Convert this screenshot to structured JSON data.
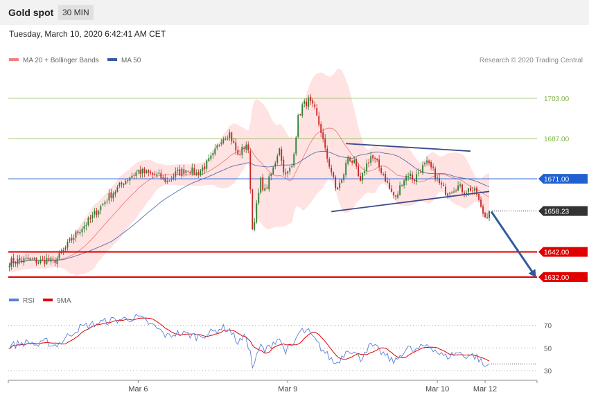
{
  "header": {
    "title": "Gold spot",
    "timeframe": "30 MIN"
  },
  "date_text": "Tuesday, March 10, 2020 6:42:41 AM CET",
  "copyright": "Research © 2020 Trading Central",
  "colors": {
    "up": "#2e7d32",
    "down": "#c62828",
    "ma20": "#f08080",
    "band": "#ffd8d8",
    "ma50": "#3a5ba0",
    "support": "#e00000",
    "resistance": "#7cb342",
    "pivot": "#2060d0",
    "trend": "#3c4a8c",
    "rsi": "#5b7fd6",
    "rsi_ma": "#e00000"
  },
  "chart_data": [
    {
      "type": "line",
      "subtype": "candlestick",
      "legend": [
        {
          "name": "MA 20 + Bollinger Bands",
          "color": "#f08080"
        },
        {
          "name": "MA 50",
          "color": "#3a5ba0"
        }
      ],
      "x_ticks": [
        {
          "label": "Mar 6",
          "i": 62
        },
        {
          "label": "Mar 9",
          "i": 134
        },
        {
          "label": "Mar 10",
          "i": 206
        },
        {
          "label": "Mar 12",
          "i": 229
        }
      ],
      "x_range": [
        -0.5,
        254
      ],
      "y_range": [
        1626.5,
        1714.5
      ],
      "y_tick_label_style": "price tags",
      "levels": [
        {
          "label": "1703.00",
          "value": 1703.0,
          "role": "resistance"
        },
        {
          "label": "1687.00",
          "value": 1687.0,
          "role": "resistance"
        },
        {
          "label": "1671.00",
          "value": 1671.0,
          "role": "pivot"
        },
        {
          "label": "1642.00",
          "value": 1642.0,
          "role": "support"
        },
        {
          "label": "1632.00",
          "value": 1632.0,
          "role": "support"
        }
      ],
      "last_price": {
        "label": "1658.23",
        "value": 1658.23
      },
      "trendlines": [
        {
          "from": [
            162,
            1685.0
          ],
          "to": [
            222,
            1682.0
          ]
        },
        {
          "from": [
            155,
            1658.0
          ],
          "to": [
            231,
            1666.0
          ]
        }
      ],
      "forecast_arrow": {
        "from": [
          232,
          1658.0
        ],
        "to": [
          253,
          1632.5
        ]
      },
      "anchors": [
        [
          0,
          1638
        ],
        [
          5,
          1638.5
        ],
        [
          10,
          1639
        ],
        [
          14,
          1638
        ],
        [
          18,
          1639
        ],
        [
          21,
          1638
        ],
        [
          25,
          1641
        ],
        [
          29,
          1646
        ],
        [
          34,
          1651
        ],
        [
          38,
          1654
        ],
        [
          43,
          1659
        ],
        [
          48,
          1664
        ],
        [
          53,
          1668
        ],
        [
          58,
          1672
        ],
        [
          62,
          1674
        ],
        [
          67,
          1673
        ],
        [
          72,
          1672
        ],
        [
          76,
          1670
        ],
        [
          80,
          1673
        ],
        [
          86,
          1675
        ],
        [
          90,
          1673
        ],
        [
          94,
          1676
        ],
        [
          98,
          1680
        ],
        [
          102,
          1687
        ],
        [
          106,
          1689
        ],
        [
          110,
          1680
        ],
        [
          114,
          1685
        ],
        [
          115,
          1681
        ],
        [
          116,
          1668
        ],
        [
          117,
          1651
        ],
        [
          119,
          1660
        ],
        [
          121,
          1670
        ],
        [
          123,
          1666
        ],
        [
          127,
          1675
        ],
        [
          130,
          1684
        ],
        [
          131,
          1678
        ],
        [
          133,
          1672
        ],
        [
          136,
          1676
        ],
        [
          139,
          1695
        ],
        [
          141,
          1700
        ],
        [
          144,
          1702
        ],
        [
          147,
          1698
        ],
        [
          150,
          1690
        ],
        [
          152,
          1682
        ],
        [
          155,
          1674
        ],
        [
          157,
          1667
        ],
        [
          160,
          1670
        ],
        [
          163,
          1680
        ],
        [
          166,
          1677
        ],
        [
          169,
          1669
        ],
        [
          171,
          1675
        ],
        [
          174,
          1680
        ],
        [
          177,
          1677
        ],
        [
          180,
          1673
        ],
        [
          183,
          1667
        ],
        [
          186,
          1663
        ],
        [
          189,
          1670
        ],
        [
          192,
          1673
        ],
        [
          195,
          1671
        ],
        [
          198,
          1675
        ],
        [
          201,
          1677
        ],
        [
          204,
          1674
        ],
        [
          207,
          1669
        ],
        [
          210,
          1666
        ],
        [
          213,
          1667
        ],
        [
          216,
          1668
        ],
        [
          219,
          1666
        ],
        [
          222,
          1667
        ],
        [
          225,
          1665
        ],
        [
          227,
          1659
        ],
        [
          229,
          1656
        ],
        [
          231,
          1658.23
        ]
      ]
    },
    {
      "type": "line",
      "legend": [
        {
          "name": "RSI",
          "color": "#5b7fd6"
        },
        {
          "name": "9MA",
          "color": "#e00000"
        }
      ],
      "y_range": [
        24,
        85
      ],
      "ref_lines": [
        {
          "label": "70",
          "value": 70
        },
        {
          "label": "50",
          "value": 50
        },
        {
          "label": "30",
          "value": 30
        }
      ],
      "rsi_anchors": [
        [
          0,
          52
        ],
        [
          5,
          54
        ],
        [
          10,
          55
        ],
        [
          14,
          52
        ],
        [
          18,
          56
        ],
        [
          21,
          52
        ],
        [
          25,
          55
        ],
        [
          29,
          62
        ],
        [
          34,
          68
        ],
        [
          38,
          70
        ],
        [
          43,
          72
        ],
        [
          48,
          74
        ],
        [
          53,
          75
        ],
        [
          58,
          76
        ],
        [
          62,
          77
        ],
        [
          67,
          72
        ],
        [
          72,
          66
        ],
        [
          76,
          60
        ],
        [
          80,
          63
        ],
        [
          86,
          62
        ],
        [
          90,
          60
        ],
        [
          94,
          62
        ],
        [
          98,
          64
        ],
        [
          102,
          68
        ],
        [
          106,
          66
        ],
        [
          110,
          55
        ],
        [
          114,
          60
        ],
        [
          116,
          45
        ],
        [
          117,
          33
        ],
        [
          119,
          42
        ],
        [
          121,
          52
        ],
        [
          123,
          47
        ],
        [
          127,
          55
        ],
        [
          130,
          59
        ],
        [
          131,
          53
        ],
        [
          133,
          48
        ],
        [
          136,
          50
        ],
        [
          139,
          62
        ],
        [
          141,
          65
        ],
        [
          144,
          64
        ],
        [
          147,
          57
        ],
        [
          150,
          50
        ],
        [
          152,
          46
        ],
        [
          155,
          40
        ],
        [
          157,
          36
        ],
        [
          160,
          42
        ],
        [
          163,
          50
        ],
        [
          166,
          46
        ],
        [
          169,
          40
        ],
        [
          171,
          47
        ],
        [
          174,
          52
        ],
        [
          177,
          49
        ],
        [
          180,
          45
        ],
        [
          183,
          40
        ],
        [
          186,
          38
        ],
        [
          189,
          46
        ],
        [
          192,
          50
        ],
        [
          195,
          47
        ],
        [
          198,
          50
        ],
        [
          201,
          53
        ],
        [
          204,
          50
        ],
        [
          207,
          45
        ],
        [
          210,
          42
        ],
        [
          213,
          44
        ],
        [
          216,
          46
        ],
        [
          219,
          43
        ],
        [
          222,
          44
        ],
        [
          225,
          42
        ],
        [
          227,
          38
        ],
        [
          229,
          33
        ],
        [
          231,
          36
        ]
      ]
    }
  ]
}
